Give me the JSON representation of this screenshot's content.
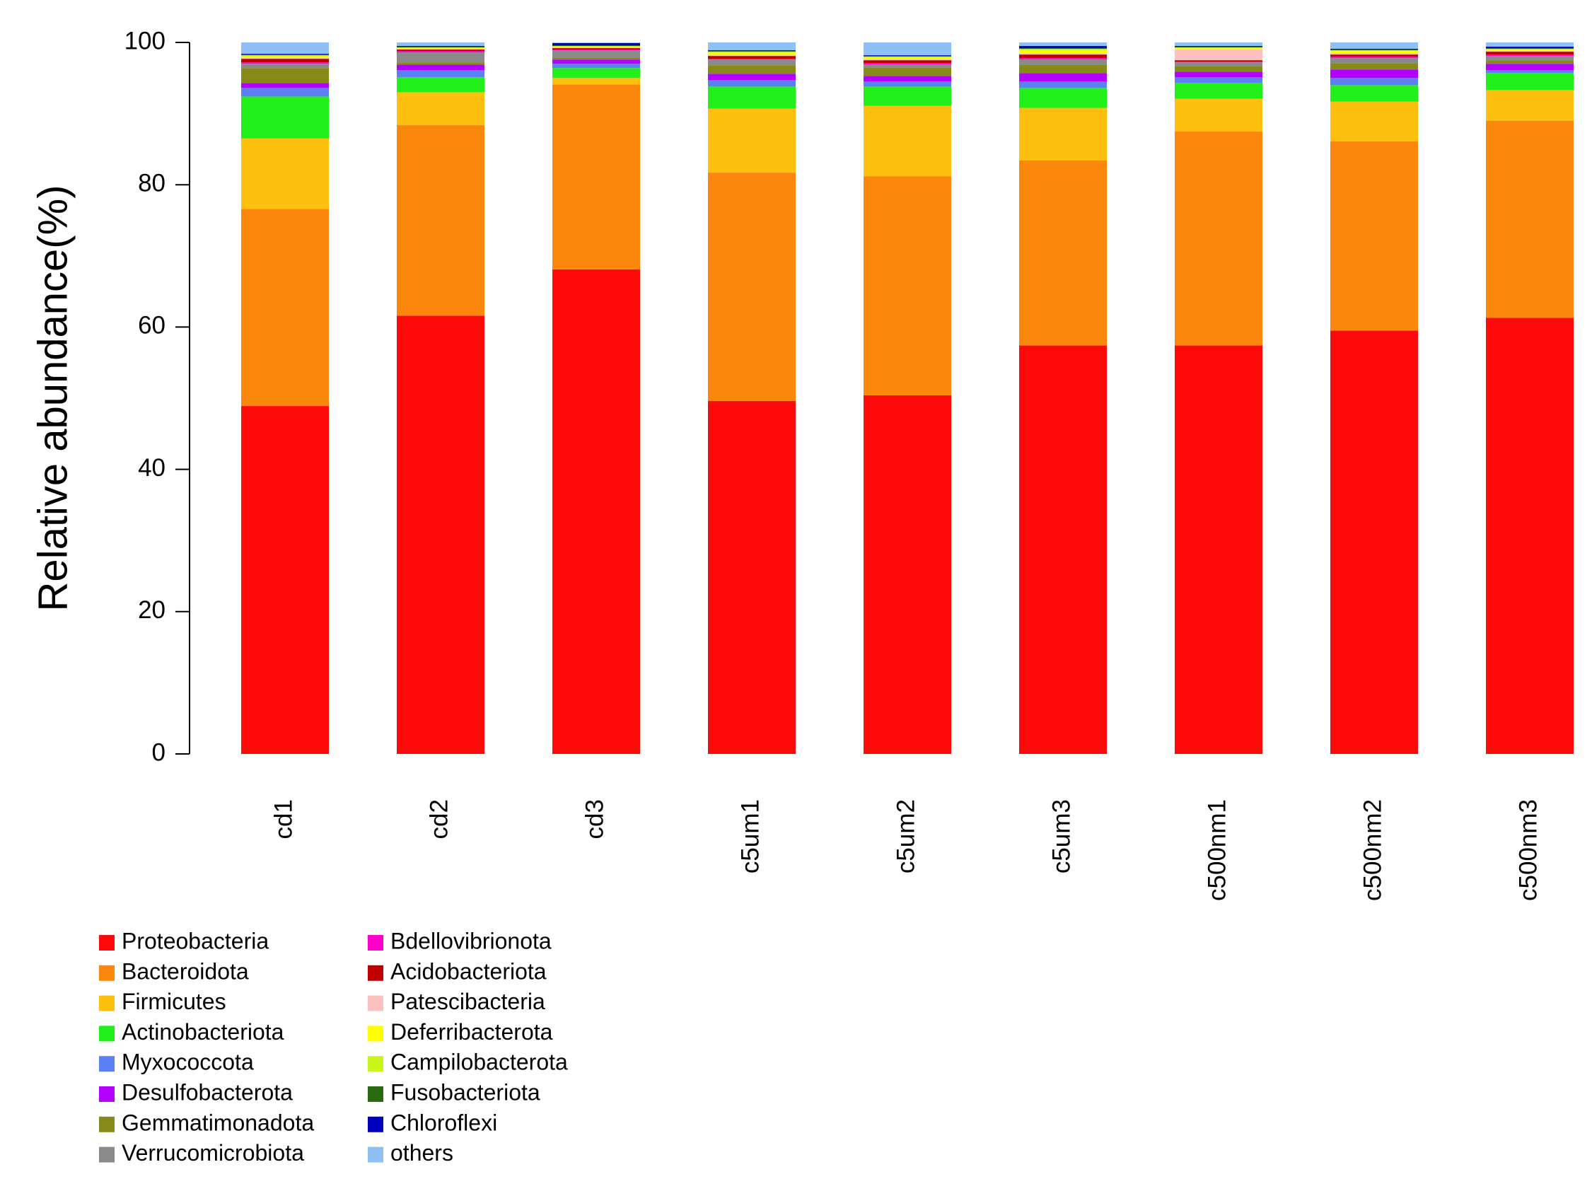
{
  "chart_data": {
    "type": "stacked-bar",
    "y_label": "Relative abundance(%)",
    "categories": [
      "cd1",
      "cd2",
      "cd3",
      "c5um1",
      "c5um2",
      "c5um3",
      "c500nm1",
      "c500nm2",
      "c500nm3"
    ],
    "ylim": [
      0,
      100
    ],
    "yticks": [
      0,
      20,
      40,
      60,
      80,
      100
    ],
    "series": [
      {
        "name": "Proteobacteria",
        "color": "#fc0a0a",
        "values": [
          48.9,
          61.6,
          68.1,
          49.6,
          50.4,
          57.4,
          57.4,
          59.5,
          61.3
        ]
      },
      {
        "name": "Bacteroidota",
        "color": "#fb870d",
        "values": [
          27.7,
          26.8,
          26.0,
          32.1,
          30.8,
          26.0,
          30.1,
          26.6,
          27.7
        ]
      },
      {
        "name": "Firmicutes",
        "color": "#fdc00f",
        "values": [
          9.9,
          4.6,
          0.9,
          9.0,
          9.9,
          7.4,
          4.6,
          5.6,
          4.3
        ]
      },
      {
        "name": "Actinobacteriota",
        "color": "#22f01a",
        "values": [
          5.9,
          2.1,
          1.4,
          3.1,
          2.7,
          2.8,
          2.2,
          2.3,
          2.4
        ]
      },
      {
        "name": "Myxococcota",
        "color": "#5b7ff5",
        "values": [
          1.2,
          1.0,
          0.6,
          0.9,
          0.7,
          0.9,
          0.8,
          1.0,
          0.4
        ]
      },
      {
        "name": "Desulfobacterota",
        "color": "#b400ff",
        "values": [
          0.7,
          0.8,
          0.6,
          0.9,
          0.8,
          1.2,
          0.8,
          1.2,
          0.9
        ]
      },
      {
        "name": "Gemmatimonadota",
        "color": "#868a18",
        "values": [
          2.1,
          0.3,
          0.3,
          1.2,
          1.2,
          1.2,
          0.8,
          0.9,
          0.5
        ]
      },
      {
        "name": "Verrucomicrobiota",
        "color": "#8a8a8a",
        "values": [
          0.6,
          1.4,
          1.0,
          0.8,
          0.4,
          0.7,
          0.5,
          0.7,
          0.6
        ]
      },
      {
        "name": "Bdellovibrionota",
        "color": "#ff00c8",
        "values": [
          0.2,
          0.2,
          0.1,
          0.1,
          0.2,
          0.2,
          0.1,
          0.2,
          0.2
        ]
      },
      {
        "name": "Acidobacteriota",
        "color": "#c00000",
        "values": [
          0.5,
          0.2,
          0.2,
          0.4,
          0.4,
          0.5,
          0.2,
          0.3,
          0.4
        ]
      },
      {
        "name": "Patescibacteria",
        "color": "#ffc0c0",
        "values": [
          0.2,
          0.1,
          0.1,
          0.2,
          0.2,
          0.2,
          1.5,
          0.2,
          0.1
        ]
      },
      {
        "name": "Deferribacterota",
        "color": "#ffff00",
        "values": [
          0.1,
          0.1,
          0.1,
          0.3,
          0.2,
          0.4,
          0.2,
          0.3,
          0.2
        ]
      },
      {
        "name": "Campilobacterota",
        "color": "#c8f51a",
        "values": [
          0.2,
          0.1,
          0.1,
          0.1,
          0.1,
          0.2,
          0.1,
          0.1,
          0.1
        ]
      },
      {
        "name": "Fusobacteriota",
        "color": "#2a6b10",
        "values": [
          0.1,
          0.1,
          0.1,
          0.1,
          0.1,
          0.1,
          0.1,
          0.1,
          0.1
        ]
      },
      {
        "name": "Chloroflexi",
        "color": "#0000c0",
        "values": [
          0.1,
          0.1,
          0.3,
          0.1,
          0.1,
          0.3,
          0.1,
          0.1,
          0.2
        ]
      },
      {
        "name": "others",
        "color": "#8ec0f5",
        "values": [
          1.6,
          0.5,
          0.1,
          1.1,
          1.8,
          0.5,
          0.5,
          0.9,
          0.6
        ]
      }
    ]
  }
}
